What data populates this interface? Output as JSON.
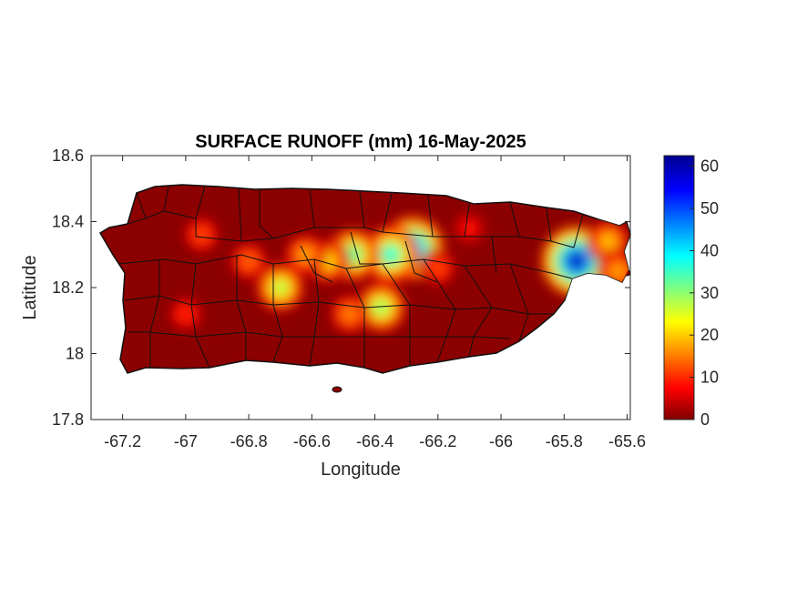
{
  "title": "SURFACE RUNOFF (mm) 16-May-2025",
  "chart_data": {
    "type": "heatmap",
    "title": "SURFACE RUNOFF (mm) 16-May-2025",
    "xlabel": "Longitude",
    "ylabel": "Latitude",
    "xlim": [
      -67.3,
      -65.59
    ],
    "ylim": [
      17.8,
      18.6
    ],
    "x_ticks": [
      -67.2,
      -67,
      -66.8,
      -66.6,
      -66.4,
      -66.2,
      -66,
      -65.8,
      -65.6
    ],
    "x_tick_labels": [
      "-67.2",
      "-67",
      "-66.8",
      "-66.6",
      "-66.4",
      "-66.2",
      "-66",
      "-65.8",
      "-65.6"
    ],
    "y_ticks": [
      17.8,
      18,
      18.2,
      18.4,
      18.6
    ],
    "y_tick_labels": [
      "17.8",
      "18",
      "18.2",
      "18.4",
      "18.6"
    ],
    "colorbar": {
      "range": [
        0,
        62.5
      ],
      "ticks": [
        0,
        10,
        20,
        30,
        40,
        50,
        60
      ],
      "tick_labels": [
        "0",
        "10",
        "20",
        "30",
        "40",
        "50",
        "60"
      ],
      "colormap": [
        "#800000",
        "#ff0000",
        "#ffff00",
        "#00ffff",
        "#0000ff",
        "#00008f"
      ]
    },
    "background_color": "#8b0000",
    "hotspots": [
      {
        "lon": -66.28,
        "lat": 18.32,
        "value": 50
      },
      {
        "lon": -66.35,
        "lat": 18.3,
        "value": 38
      },
      {
        "lon": -66.47,
        "lat": 18.3,
        "value": 34
      },
      {
        "lon": -66.55,
        "lat": 18.28,
        "value": 22
      },
      {
        "lon": -66.62,
        "lat": 18.3,
        "value": 18
      },
      {
        "lon": -66.7,
        "lat": 18.2,
        "value": 28
      },
      {
        "lon": -66.38,
        "lat": 18.14,
        "value": 30
      },
      {
        "lon": -66.48,
        "lat": 18.12,
        "value": 16
      },
      {
        "lon": -66.8,
        "lat": 18.28,
        "value": 14
      },
      {
        "lon": -66.95,
        "lat": 18.36,
        "value": 12
      },
      {
        "lon": -67.0,
        "lat": 18.12,
        "value": 10
      },
      {
        "lon": -66.2,
        "lat": 18.26,
        "value": 12
      },
      {
        "lon": -65.76,
        "lat": 18.28,
        "value": 60
      },
      {
        "lon": -65.66,
        "lat": 18.34,
        "value": 20
      },
      {
        "lon": -65.63,
        "lat": 18.25,
        "value": 18
      },
      {
        "lon": -66.1,
        "lat": 18.38,
        "value": 8
      }
    ]
  }
}
